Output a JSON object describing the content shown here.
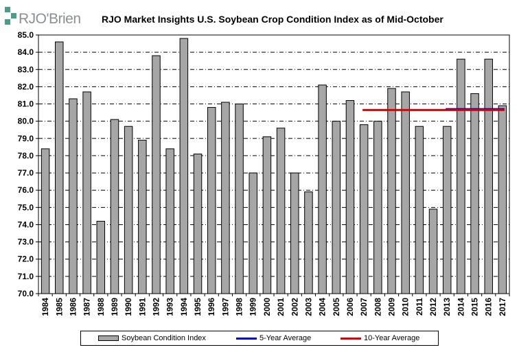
{
  "logo": {
    "text": "RJO'Brien",
    "mark_color": "#4b9d8a"
  },
  "title": "RJO Market Insights U.S. Soybean Crop Condition Index as of Mid-October",
  "chart_data": {
    "type": "bar",
    "title": "RJO Market Insights U.S. Soybean Crop Condition Index as of Mid-October",
    "xlabel": "",
    "ylabel": "",
    "ylim": [
      70,
      85
    ],
    "ytick_step": 1,
    "ytick_labels": [
      "70.0",
      "71.0",
      "72.0",
      "73.0",
      "74.0",
      "75.0",
      "76.0",
      "77.0",
      "78.0",
      "79.0",
      "80.0",
      "81.0",
      "82.0",
      "83.0",
      "84.0",
      "85.0"
    ],
    "grid": "horizontal dash-dot",
    "legend_position": "bottom",
    "categories": [
      "1984",
      "1985",
      "1986",
      "1987",
      "1988",
      "1989",
      "1990",
      "1991",
      "1992",
      "1993",
      "1994",
      "1995",
      "1996",
      "1997",
      "1998",
      "1999",
      "2000",
      "2001",
      "2002",
      "2003",
      "2004",
      "2005",
      "2006",
      "2007",
      "2008",
      "2009",
      "2010",
      "2011",
      "2012",
      "2013",
      "2014",
      "2015",
      "2016",
      "2017"
    ],
    "series": [
      {
        "name": "Soybean Condition Index",
        "kind": "bar",
        "color": "#a6a6a6",
        "values": [
          78.4,
          84.6,
          81.3,
          81.7,
          74.2,
          80.1,
          79.7,
          78.9,
          83.8,
          78.4,
          84.8,
          78.1,
          80.8,
          81.1,
          81.0,
          77.0,
          79.1,
          79.6,
          77.0,
          75.9,
          82.1,
          80.0,
          81.2,
          79.8,
          80.0,
          81.9,
          81.7,
          79.7,
          74.9,
          79.7,
          83.6,
          81.6,
          83.6,
          80.9
        ]
      },
      {
        "name": "5-Year Average",
        "kind": "line",
        "color": "#0000cc",
        "x_start": "2013",
        "x_end": "2017",
        "value": 80.7
      },
      {
        "name": "10-Year Average",
        "kind": "line",
        "color": "#e00000",
        "x_start": "2007",
        "x_end": "2017",
        "value": 80.65
      }
    ]
  }
}
